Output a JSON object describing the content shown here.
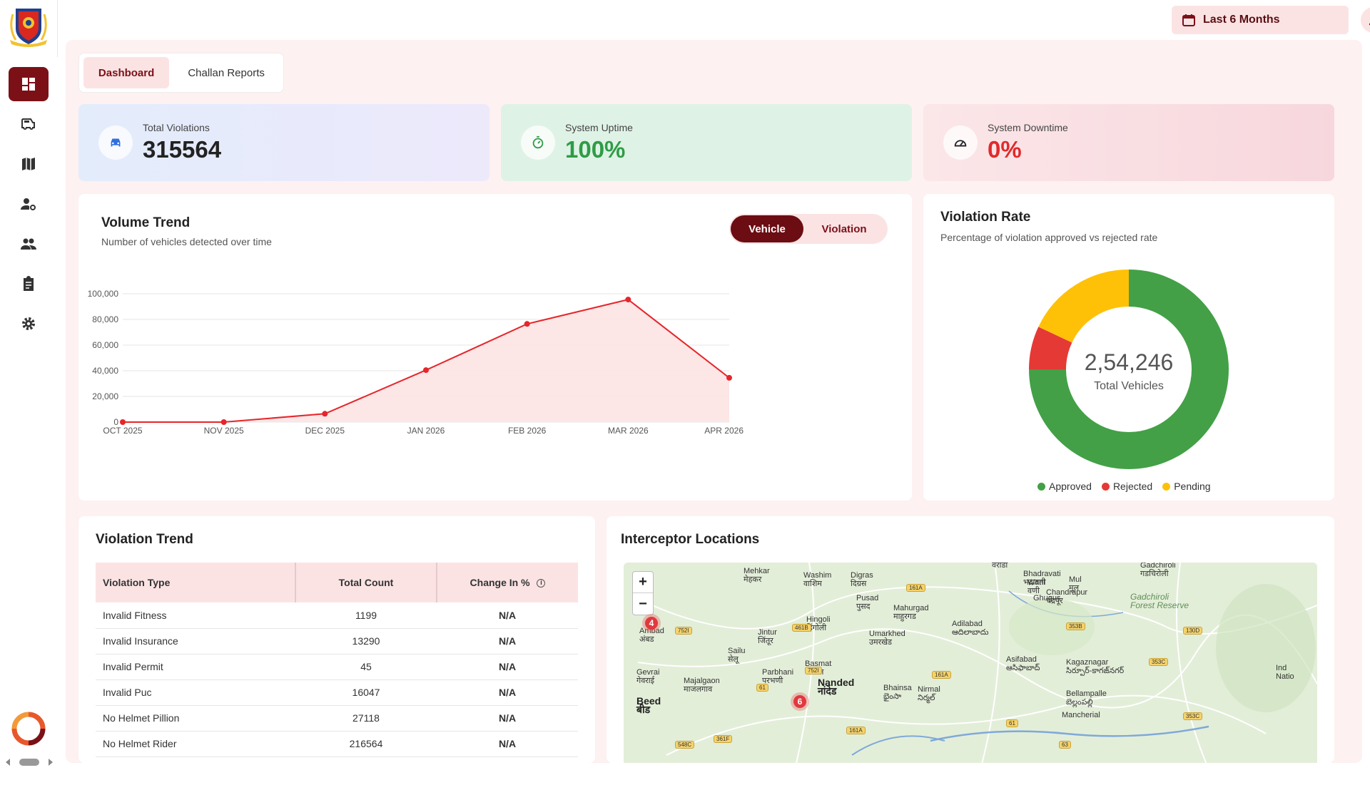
{
  "header": {
    "date_range": "Last 6 Months"
  },
  "tabs": [
    {
      "label": "Dashboard",
      "active": true
    },
    {
      "label": "Challan Reports",
      "active": false
    }
  ],
  "stats": {
    "violations": {
      "label": "Total Violations",
      "value": "315564"
    },
    "uptime": {
      "label": "System Uptime",
      "value": "100%"
    },
    "downtime": {
      "label": "System Downtime",
      "value": "0%"
    }
  },
  "volume_trend": {
    "title": "Volume Trend",
    "subtitle": "Number of vehicles detected over time",
    "toggle": {
      "vehicle": "Vehicle",
      "violation": "Violation",
      "selected": "Vehicle"
    }
  },
  "violation_rate": {
    "title": "Violation Rate",
    "subtitle": "Percentage of violation approved vs rejected rate",
    "center_value": "2,54,246",
    "center_label": "Total Vehicles",
    "legend": [
      "Approved",
      "Rejected",
      "Pending"
    ]
  },
  "violation_trend": {
    "title": "Violation Trend",
    "headers": [
      "Violation Type",
      "Total Count",
      "Change In %"
    ],
    "rows": [
      [
        "Invalid Fitness",
        "1199",
        "N/A"
      ],
      [
        "Invalid Insurance",
        "13290",
        "N/A"
      ],
      [
        "Invalid Permit",
        "45",
        "N/A"
      ],
      [
        "Invalid Puc",
        "16047",
        "N/A"
      ],
      [
        "No Helmet Pillion",
        "27118",
        "N/A"
      ],
      [
        "No Helmet Rider",
        "216564",
        "N/A"
      ]
    ]
  },
  "interceptor_locations": {
    "title": "Interceptor Locations",
    "zoom_in": "+",
    "zoom_out": "−",
    "markers": [
      "4",
      "6"
    ],
    "towns": [
      "Mehkar\nमेहकर",
      "Washim\nवाशिम",
      "Digras\nदिग्रस",
      "वरोडा",
      "Bhadravati\nभद्रावती",
      "Gadchiroli\nगडचिरोली",
      "Wani\nवणी",
      "Mul\nमूल",
      "Chandrapur\nचंद्रपूर",
      "Ghugus",
      "Gadchiroli\nForest Reserve",
      "Pusad\nपुसद",
      "Mahurgad\nमाहुरगड",
      "Hingoli\nहिंगोली",
      "Ambad\nअंबड",
      "Jintur\nजिंतूर",
      "Adilabad\nఆదిలాబాదు",
      "Umarkhed\nउमरखेड",
      "Sailu\nसेलू",
      "Basmat\nवसमत",
      "Asifabad\nఆసిఫాబాద్",
      "Kagaznagar\nసిర్పూర్-కాగజ్‌నగర్",
      "Gevrai\nगेवराई",
      "Majalgaon\nमाजलगाव",
      "Parbhani\nपरभणी",
      "Nanded\nनांदेड",
      "Bhainsa\nభైంసా",
      "Nirmal\nనిర్మల్",
      "Bellampalle\nబెల్లంపల్లి",
      "Beed\nबीड",
      "Mancherial",
      "Ind\nNatio"
    ]
  },
  "chart_data": [
    {
      "type": "area",
      "title": "Volume Trend",
      "categories": [
        "OCT 2025",
        "NOV 2025",
        "DEC 2025",
        "JAN 2026",
        "FEB 2026",
        "MAR 2026",
        "APR 2026"
      ],
      "values": [
        0,
        0,
        6500,
        40500,
        76500,
        95500,
        34500
      ],
      "yticks": [
        "0",
        "20,000",
        "40,000",
        "60,000",
        "80,000",
        "100,000"
      ],
      "ylim": [
        0,
        100000
      ],
      "color": "#e5262b",
      "grid": true
    },
    {
      "type": "pie",
      "title": "Violation Rate",
      "categories": [
        "Approved",
        "Rejected",
        "Pending"
      ],
      "values": [
        75,
        7,
        18
      ],
      "colors": [
        "#43a047",
        "#e53935",
        "#ffc107"
      ]
    }
  ],
  "colors": {
    "brand": "#7b1117",
    "brand_light": "#fbe3e4",
    "uptime": "#2e9c46",
    "downtime": "#e02a2a",
    "violations_icon": "#2f6fe0"
  }
}
